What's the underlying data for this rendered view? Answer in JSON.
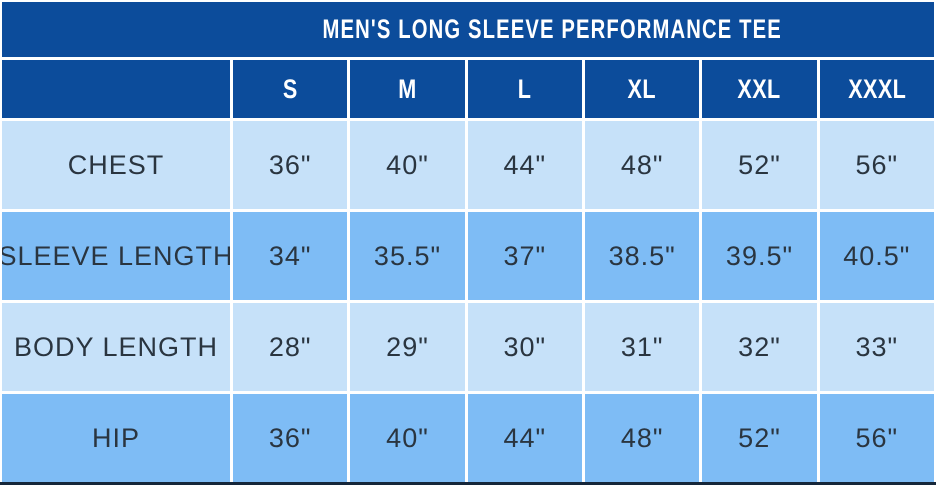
{
  "title": "MEN'S LONG SLEEVE PERFORMANCE TEE",
  "table": {
    "sizes": [
      "S",
      "M",
      "L",
      "XL",
      "XXL",
      "XXXL"
    ],
    "rows": [
      {
        "label": "CHEST",
        "values": [
          "36\"",
          "40\"",
          "44\"",
          "48\"",
          "52\"",
          "56\""
        ]
      },
      {
        "label": "SLEEVE LENGTH",
        "values": [
          "34\"",
          "35.5\"",
          "37\"",
          "38.5\"",
          "39.5\"",
          "40.5\""
        ]
      },
      {
        "label": "BODY LENGTH",
        "values": [
          "28\"",
          "29\"",
          "30\"",
          "31\"",
          "32\"",
          "33\""
        ]
      },
      {
        "label": "HIP",
        "values": [
          "36\"",
          "40\"",
          "44\"",
          "48\"",
          "52\"",
          "56\""
        ]
      }
    ]
  },
  "chart_data": {
    "type": "table",
    "title": "MEN'S LONG SLEEVE PERFORMANCE TEE",
    "columns": [
      "",
      "S",
      "M",
      "L",
      "XL",
      "XXL",
      "XXXL"
    ],
    "rows": [
      [
        "CHEST",
        "36\"",
        "40\"",
        "44\"",
        "48\"",
        "52\"",
        "56\""
      ],
      [
        "SLEEVE LENGTH",
        "34\"",
        "35.5\"",
        "37\"",
        "38.5\"",
        "39.5\"",
        "40.5\""
      ],
      [
        "BODY LENGTH",
        "28\"",
        "29\"",
        "30\"",
        "31\"",
        "32\"",
        "33\""
      ],
      [
        "HIP",
        "36\"",
        "40\"",
        "44\"",
        "48\"",
        "52\"",
        "56\""
      ]
    ],
    "layout": {
      "grid": "white 3px separators",
      "row_banding": [
        "light",
        "medium"
      ]
    }
  },
  "colors": {
    "header_blue": "#0c4c9b",
    "row_light": "#c6e1f9",
    "row_medium": "#7ebcf5",
    "grid_line": "#ffffff",
    "body_text": "#2a3540",
    "header_text": "#ffffff",
    "bottom_edge": "#16273a"
  }
}
